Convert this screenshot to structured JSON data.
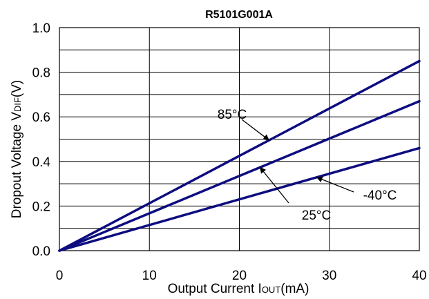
{
  "chart_data": {
    "type": "line",
    "title": "R5101G001A",
    "xlabel": {
      "main": "Output Current I",
      "sub": "OUT",
      "unit": "(mA)"
    },
    "ylabel": {
      "main": "Dropout Voltage V",
      "sub": "DIF",
      "unit": "(V)"
    },
    "xlim": [
      0,
      40
    ],
    "ylim": [
      0,
      1.0
    ],
    "x_ticks": [
      "0",
      "10",
      "20",
      "30",
      "40"
    ],
    "y_ticks": [
      "0.0",
      "0.2",
      "0.4",
      "0.6",
      "0.8",
      "1.0"
    ],
    "grid": true,
    "series": [
      {
        "name": "85°C",
        "x": [
          0,
          40
        ],
        "y": [
          0,
          0.85
        ],
        "color": "#0d0d80"
      },
      {
        "name": "25°C",
        "x": [
          0,
          40
        ],
        "y": [
          0,
          0.67
        ],
        "color": "#0d0d80"
      },
      {
        "name": "-40°C",
        "x": [
          0,
          40
        ],
        "y": [
          0,
          0.46
        ],
        "color": "#0d0d80"
      }
    ],
    "annotations": [
      {
        "text": "85°C",
        "series": "85°C"
      },
      {
        "text": "25°C",
        "series": "25°C"
      },
      {
        "text": "-40°C",
        "series": "-40°C"
      }
    ]
  }
}
